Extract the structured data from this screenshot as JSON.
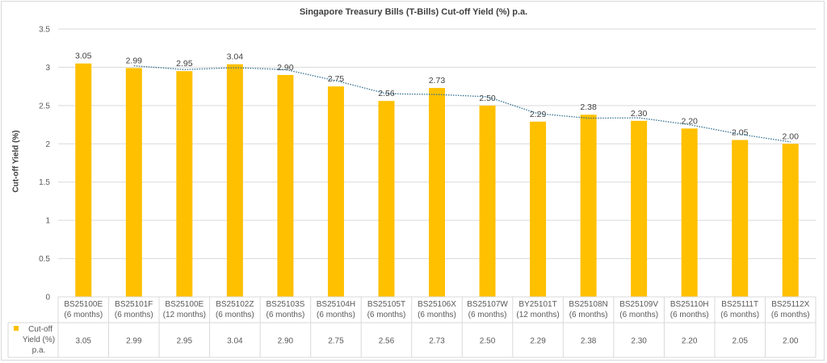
{
  "chart_data": {
    "type": "bar",
    "title": "Singapore Treasury Bills (T-Bills) Cut-off Yield (%) p.a.",
    "ylabel": "Cut-off Yield (%)",
    "xlabel": "",
    "ylim": [
      0,
      3.5
    ],
    "yticks": [
      "0",
      "0.5",
      "1",
      "1.5",
      "2",
      "2.5",
      "3",
      "3.5"
    ],
    "grid": true,
    "bar_color": "#FFC000",
    "trendline": {
      "type": "moving-average",
      "period": 2,
      "style": "dotted",
      "color": "#31708F"
    },
    "categories": [
      [
        "BS25100E",
        "(6 months)"
      ],
      [
        "BS25101F",
        "(6 months)"
      ],
      [
        "BS25100E",
        "(12 months)"
      ],
      [
        "BS25102Z",
        "(6 months)"
      ],
      [
        "BS25103S",
        "(6 months)"
      ],
      [
        "BS25104H",
        "(6 months)"
      ],
      [
        "BS25105T",
        "(6 months)"
      ],
      [
        "BS25106X",
        "(6 months)"
      ],
      [
        "BS25107W",
        "(6 months)"
      ],
      [
        "BY25101T",
        "(12 months)"
      ],
      [
        "BS25108N",
        "(6 months)"
      ],
      [
        "BS25109V",
        "(6 months)"
      ],
      [
        "BS25110H",
        "(6 months)"
      ],
      [
        "BS25111T",
        "(6 months)"
      ],
      [
        "BS25112X",
        "(6 months)"
      ]
    ],
    "series": [
      {
        "name": "Cut-off Yield (%) p.a.",
        "name_lines": [
          "Cut-off",
          "Yield (%)",
          "p.a."
        ],
        "values": [
          3.05,
          2.99,
          2.95,
          3.04,
          2.9,
          2.75,
          2.56,
          2.73,
          2.5,
          2.29,
          2.38,
          2.3,
          2.2,
          2.05,
          2.0
        ],
        "labels": [
          "3.05",
          "2.99",
          "2.95",
          "3.04",
          "2.90",
          "2.75",
          "2.56",
          "2.73",
          "2.50",
          "2.29",
          "2.38",
          "2.30",
          "2.20",
          "2.05",
          "2.00"
        ]
      }
    ],
    "data_table": true
  }
}
